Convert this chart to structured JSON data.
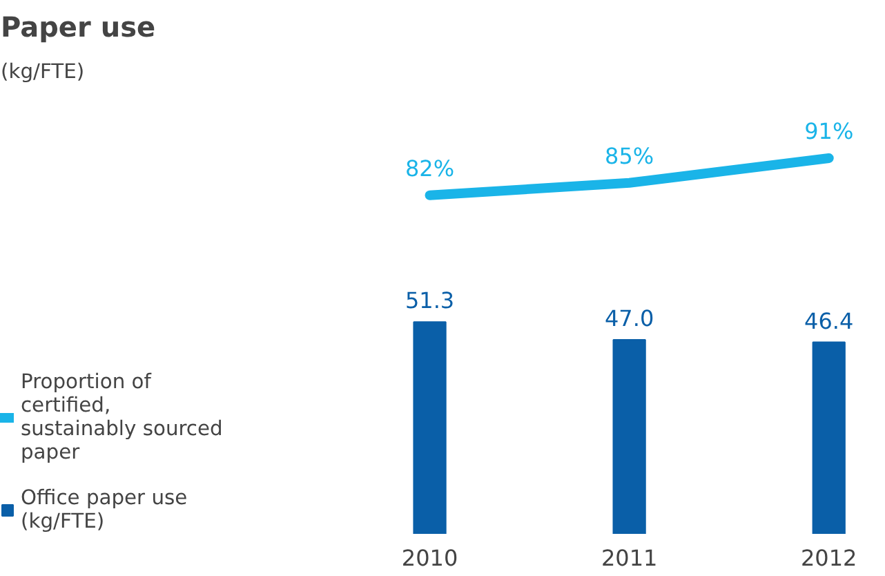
{
  "chart_data": {
    "type": "bar",
    "title": "Paper use",
    "subtitle": "(kg/FTE)",
    "categories": [
      "2010",
      "2011",
      "2012"
    ],
    "series": [
      {
        "name": "Proportion of certified, sustainably sourced paper",
        "type": "line",
        "color": "#1ab4e8",
        "values": [
          82,
          85,
          91
        ],
        "value_labels": [
          "82%",
          "85%",
          "91%"
        ]
      },
      {
        "name": "Office paper use (kg/FTE)",
        "color": "#0a5fa8",
        "values": [
          51.3,
          47.0,
          46.4
        ],
        "value_labels": [
          "51.3",
          "47.0",
          "46.4"
        ]
      }
    ],
    "tick_labels": "x",
    "legend": "bottom left"
  }
}
